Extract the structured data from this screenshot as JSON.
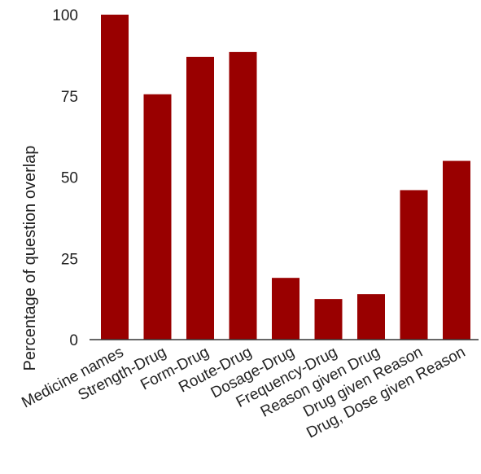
{
  "chart_data": {
    "type": "bar",
    "title": "",
    "xlabel": "",
    "ylabel": "Percentage of question overlap",
    "ylim": [
      0,
      100
    ],
    "yticks": [
      0,
      25,
      50,
      75,
      100
    ],
    "grid": false,
    "legend": "none",
    "bar_color": "#990000",
    "categories": [
      "Medicine names",
      "Strength-Drug",
      "Form-Drug",
      "Route-Drug",
      "Dosage-Drug",
      "Frequency-Drug",
      "Reason given Drug",
      "Drug given Reason",
      "Drug, Dose given Reason"
    ],
    "values": [
      100,
      75.5,
      87,
      88.5,
      19,
      12.5,
      14,
      46,
      55
    ]
  }
}
